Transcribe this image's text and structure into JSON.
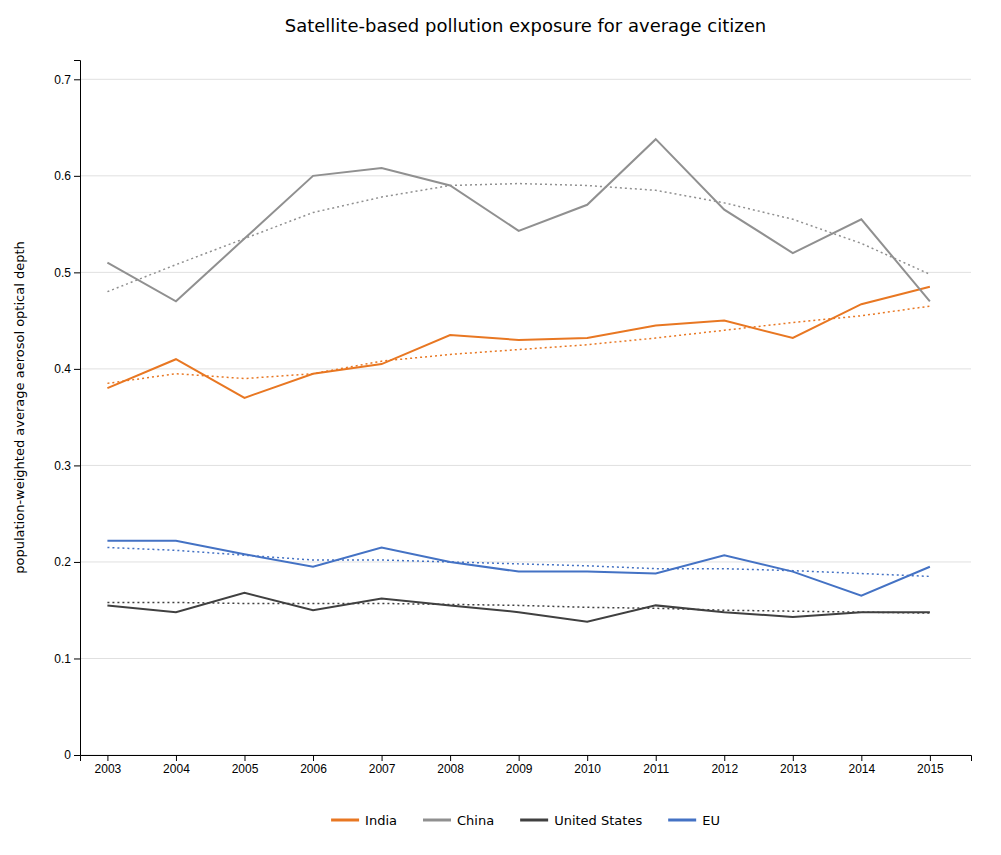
{
  "chart_data": {
    "type": "line",
    "title": "Satellite-based pollution exposure for average citizen",
    "y_label": "population-weighted average aerosol optical depth",
    "x": [
      2003,
      2004,
      2005,
      2006,
      2007,
      2008,
      2009,
      2010,
      2011,
      2012,
      2013,
      2014,
      2015
    ],
    "series": [
      {
        "name": "India",
        "color": "#E87722",
        "line_style": "solid",
        "values": [
          0.38,
          0.41,
          0.37,
          0.395,
          0.405,
          0.435,
          0.43,
          0.432,
          0.445,
          0.45,
          0.432,
          0.467,
          0.485
        ]
      },
      {
        "name": "China",
        "color": "#909090",
        "line_style": "solid",
        "values": [
          0.51,
          0.47,
          0.535,
          0.6,
          0.608,
          0.59,
          0.543,
          0.57,
          0.638,
          0.565,
          0.52,
          0.555,
          0.47
        ]
      },
      {
        "name": "United States",
        "color": "#404040",
        "line_style": "solid",
        "values": [
          0.155,
          0.148,
          0.168,
          0.15,
          0.162,
          0.155,
          0.148,
          0.138,
          0.155,
          0.148,
          0.143,
          0.148,
          0.148
        ]
      },
      {
        "name": "EU",
        "color": "#4472C4",
        "line_style": "solid",
        "values": [
          0.222,
          0.222,
          0.208,
          0.195,
          0.215,
          0.2,
          0.19,
          0.19,
          0.188,
          0.207,
          0.19,
          0.165,
          0.195
        ]
      },
      {
        "color": "#E87722",
        "line_style": "dotted",
        "values": [
          0.385,
          0.395,
          0.39,
          0.395,
          0.408,
          0.415,
          0.42,
          0.425,
          0.432,
          0.44,
          0.448,
          0.455,
          0.465
        ]
      },
      {
        "color": "#909090",
        "line_style": "dotted",
        "values": [
          0.48,
          0.508,
          0.535,
          0.562,
          0.578,
          0.59,
          0.592,
          0.59,
          0.585,
          0.572,
          0.555,
          0.53,
          0.498
        ]
      },
      {
        "color": "#404040",
        "line_style": "dotted",
        "values": [
          0.158,
          0.158,
          0.157,
          0.157,
          0.157,
          0.156,
          0.155,
          0.153,
          0.152,
          0.15,
          0.149,
          0.148,
          0.147
        ]
      },
      {
        "color": "#4472C4",
        "line_style": "dotted",
        "values": [
          0.215,
          0.212,
          0.207,
          0.202,
          0.202,
          0.2,
          0.198,
          0.196,
          0.193,
          0.193,
          0.191,
          0.188,
          0.185
        ]
      }
    ],
    "xlim": [
      2002.6,
      2015.6
    ],
    "xticks": [
      2003,
      2004,
      2005,
      2006,
      2007,
      2008,
      2009,
      2010,
      2011,
      2012,
      2013,
      2014,
      2015
    ],
    "ylim": [
      0,
      0.72
    ],
    "yticks": [
      0,
      0.1,
      0.2,
      0.3,
      0.4,
      0.5,
      0.6,
      0.7
    ],
    "grid": true,
    "legend": "bottom"
  }
}
